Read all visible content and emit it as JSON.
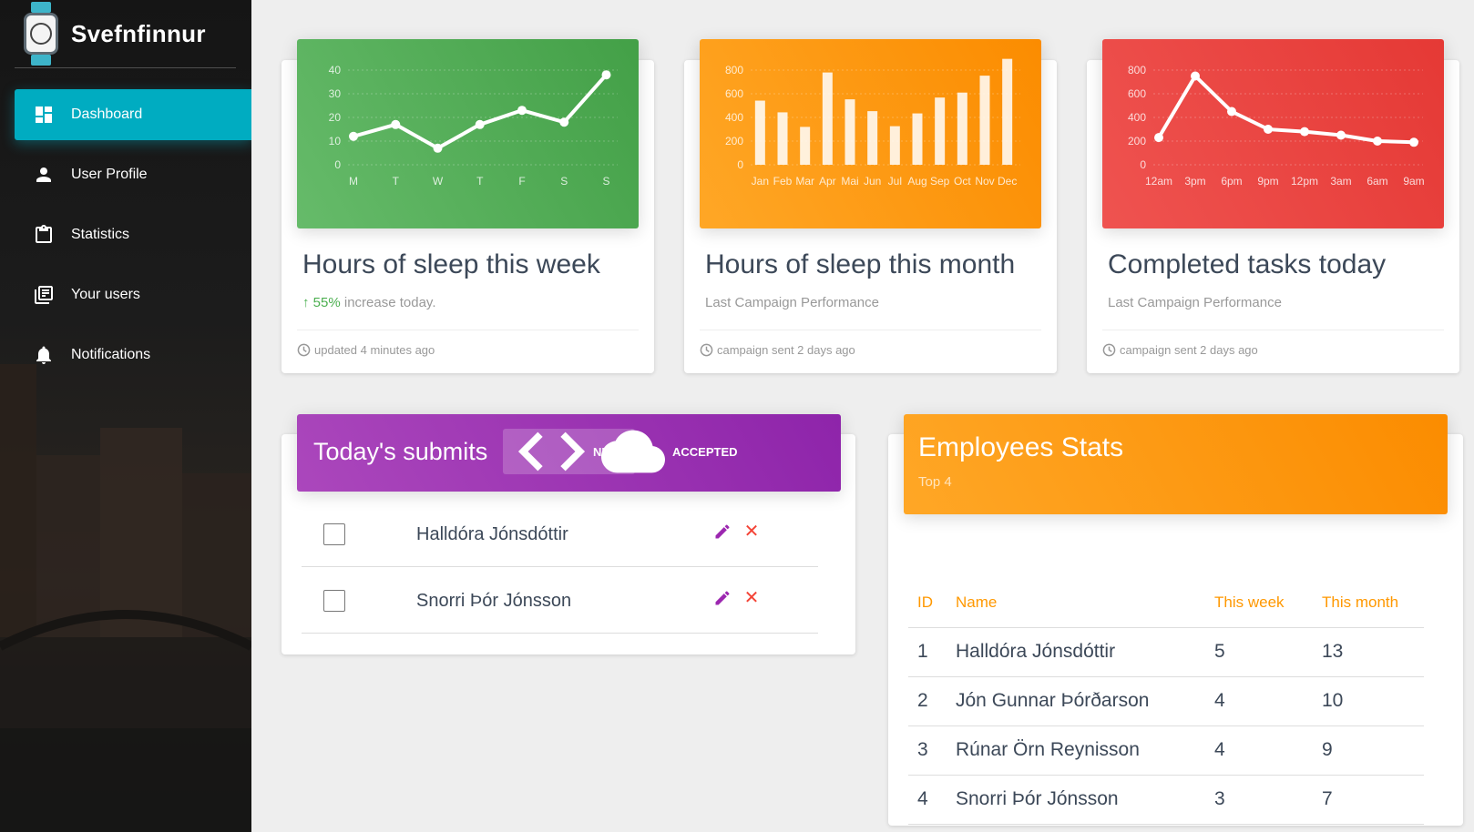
{
  "app": {
    "title": "Svefnfinnur"
  },
  "sidebar": {
    "items": [
      {
        "label": "Dashboard",
        "icon": "dashboard-icon",
        "active": true
      },
      {
        "label": "User Profile",
        "icon": "person-icon"
      },
      {
        "label": "Statistics",
        "icon": "clipboard-icon"
      },
      {
        "label": "Your users",
        "icon": "library-books-icon"
      },
      {
        "label": "Notifications",
        "icon": "bell-icon"
      }
    ]
  },
  "cards": [
    {
      "title": "Hours of sleep this week",
      "category_highlight": "55%",
      "category_rest": " increase today.",
      "footer": "updated 4 minutes ago",
      "chart_data": {
        "type": "line",
        "categories": [
          "M",
          "T",
          "W",
          "T",
          "F",
          "S",
          "S"
        ],
        "values": [
          12,
          17,
          7,
          17,
          23,
          18,
          38
        ],
        "ylim": [
          0,
          40
        ],
        "yticks": [
          0,
          10,
          20,
          30,
          40
        ],
        "color": "#43a047"
      }
    },
    {
      "title": "Hours of sleep this month",
      "category": "Last Campaign Performance",
      "footer": "campaign sent 2 days ago",
      "chart_data": {
        "type": "bar",
        "categories": [
          "Jan",
          "Feb",
          "Mar",
          "Apr",
          "Mai",
          "Jun",
          "Jul",
          "Aug",
          "Sep",
          "Oct",
          "Nov",
          "Dec"
        ],
        "values": [
          542,
          443,
          320,
          780,
          553,
          453,
          326,
          434,
          568,
          610,
          753,
          895
        ],
        "ylim": [
          0,
          800
        ],
        "yticks": [
          0,
          200,
          400,
          600,
          800
        ],
        "color": "#fb8c00"
      }
    },
    {
      "title": "Completed tasks today",
      "category": "Last Campaign Performance",
      "footer": "campaign sent 2 days ago",
      "chart_data": {
        "type": "line",
        "categories": [
          "12am",
          "3pm",
          "6pm",
          "9pm",
          "12pm",
          "3am",
          "6am",
          "9am"
        ],
        "values": [
          230,
          750,
          450,
          300,
          280,
          250,
          200,
          190
        ],
        "ylim": [
          0,
          800
        ],
        "yticks": [
          0,
          200,
          400,
          600,
          800
        ],
        "color": "#e53935"
      }
    }
  ],
  "tasks": {
    "title": "Today's submits",
    "tabs": [
      {
        "label": "NEW",
        "icon": "code-icon",
        "active": true
      },
      {
        "label": "ACCEPTED",
        "icon": "cloud-icon"
      }
    ],
    "rows": [
      {
        "text": "Halldóra Jónsdóttir"
      },
      {
        "text": "Snorri Þór Jónsson"
      }
    ]
  },
  "employees": {
    "title": "Employees Stats",
    "subtitle": "Top 4",
    "columns": [
      "ID",
      "Name",
      "This week",
      "This month"
    ],
    "rows": [
      [
        "1",
        "Halldóra Jónsdóttir",
        "5",
        "13"
      ],
      [
        "2",
        "Jón Gunnar Þórðarson",
        "4",
        "10"
      ],
      [
        "3",
        "Rúnar Örn Reynisson",
        "4",
        "9"
      ],
      [
        "4",
        "Snorri Þór Jónsson",
        "3",
        "7"
      ]
    ]
  }
}
